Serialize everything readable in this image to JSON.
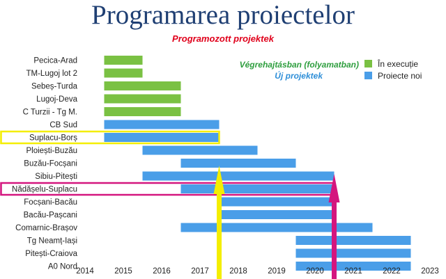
{
  "title": "Programarea proiectelor",
  "subtitle": "Programozott projektek",
  "annotations": {
    "green_note": "Végrehajtásban (folyamatban)",
    "blue_note": "Új projektek"
  },
  "colors": {
    "in_execution": "#7ac143",
    "new_projects": "#4a9ee8",
    "highlight_yellow": "#f4ee00",
    "highlight_magenta": "#d4157e",
    "green_note": "#2e9e3e",
    "blue_note": "#2f8fd8"
  },
  "chart_data": {
    "type": "bar",
    "orientation": "horizontal-gantt",
    "legend": {
      "placement": "top-right",
      "entries": [
        {
          "name": "În execuție",
          "color": "#7ac143"
        },
        {
          "name": "Proiecte noi",
          "color": "#4a9ee8"
        }
      ]
    },
    "x_ticks": [
      "2014",
      "2015",
      "2016",
      "2017",
      "2018",
      "2019",
      "2020",
      "2021",
      "2022",
      "2023"
    ],
    "xlim": [
      2014,
      2023
    ],
    "grid": false,
    "tasks": [
      {
        "name": "Pecica-Arad",
        "start": 2014.5,
        "end": 2015.5,
        "series": "În execuție"
      },
      {
        "name": "TM-Lugoj lot 2",
        "start": 2014.5,
        "end": 2015.5,
        "series": "În execuție"
      },
      {
        "name": "Sebeș-Turda",
        "start": 2014.5,
        "end": 2016.5,
        "series": "În execuție"
      },
      {
        "name": "Lugoj-Deva",
        "start": 2014.5,
        "end": 2016.5,
        "series": "În execuție"
      },
      {
        "name": "C Turzii - Tg M.",
        "start": 2014.5,
        "end": 2016.5,
        "series": "În execuție"
      },
      {
        "name": "CB Sud",
        "start": 2014.5,
        "end": 2017.5,
        "series": "Proiecte noi"
      },
      {
        "name": "Suplacu-Borș",
        "start": 2014.5,
        "end": 2017.5,
        "series": "Proiecte noi",
        "highlight": "yellow"
      },
      {
        "name": "Ploiești-Buzău",
        "start": 2015.5,
        "end": 2018.5,
        "series": "Proiecte noi"
      },
      {
        "name": "Buzău-Focșani",
        "start": 2016.5,
        "end": 2019.5,
        "series": "Proiecte noi"
      },
      {
        "name": "Sibiu-Pitești",
        "start": 2015.5,
        "end": 2020.5,
        "series": "Proiecte noi"
      },
      {
        "name": "Nădășelu-Suplacu",
        "start": 2016.5,
        "end": 2020.5,
        "series": "Proiecte noi",
        "highlight": "magenta"
      },
      {
        "name": "Focșani-Bacău",
        "start": 2017.5,
        "end": 2020.5,
        "series": "Proiecte noi"
      },
      {
        "name": "Bacău-Pașcani",
        "start": 2017.5,
        "end": 2020.5,
        "series": "Proiecte noi"
      },
      {
        "name": "Comarnic-Brașov",
        "start": 2016.5,
        "end": 2021.5,
        "series": "Proiecte noi"
      },
      {
        "name": "Tg Neamț-Iași",
        "start": 2019.5,
        "end": 2022.5,
        "series": "Proiecte noi"
      },
      {
        "name": "Pitești-Craiova",
        "start": 2019.5,
        "end": 2022.5,
        "series": "Proiecte noi"
      },
      {
        "name": "A0 Nord",
        "start": 2019.5,
        "end": 2022.5,
        "series": "Proiecte noi"
      }
    ],
    "markers": [
      {
        "at": 2017.5,
        "color": "yellow"
      },
      {
        "at": 2020.5,
        "color": "magenta"
      }
    ]
  }
}
